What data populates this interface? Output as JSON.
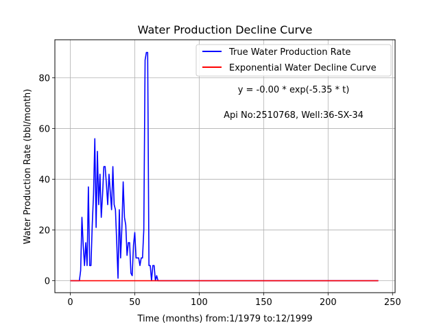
{
  "chart_data": {
    "type": "line",
    "title": "Water Production Decline Curve",
    "xlabel": "Time (months) from:1/1979 to:12/1999",
    "ylabel": "Water Production Rate (bbl/month)",
    "xlim": [
      -12,
      252
    ],
    "ylim": [
      -4.7,
      95
    ],
    "xticks": [
      0,
      50,
      100,
      150,
      200,
      250
    ],
    "yticks": [
      0,
      20,
      40,
      60,
      80
    ],
    "grid": true,
    "legend_position": "top-right",
    "annotations": [
      "y = -0.00 * exp(-5.35 * t)",
      "Api No:2510768, Well:36-SX-34"
    ],
    "series": [
      {
        "name": "True Water Production Rate",
        "color": "#0000ff",
        "x": [
          0,
          1,
          2,
          3,
          4,
          5,
          6,
          7,
          8,
          9,
          10,
          11,
          12,
          13,
          14,
          15,
          16,
          17,
          18,
          19,
          20,
          21,
          22,
          23,
          24,
          25,
          26,
          27,
          28,
          29,
          30,
          31,
          32,
          33,
          34,
          35,
          36,
          37,
          38,
          39,
          40,
          41,
          42,
          43,
          44,
          45,
          46,
          47,
          48,
          49,
          50,
          51,
          52,
          53,
          54,
          55,
          56,
          57,
          58,
          59,
          60,
          61,
          62,
          63,
          64,
          65,
          66,
          67,
          68,
          69,
          70,
          239
        ],
        "values": [
          0,
          0,
          0,
          0,
          0,
          0,
          0,
          0,
          4,
          25,
          14,
          6,
          15,
          6,
          37,
          6,
          6,
          22,
          34,
          56,
          21,
          51,
          30,
          42,
          25,
          34,
          45,
          45,
          38,
          30,
          42,
          35,
          28,
          45,
          30,
          28,
          15,
          1,
          28,
          9,
          21,
          39,
          25,
          22,
          10,
          15,
          15,
          3,
          2,
          14,
          19,
          9,
          9,
          9,
          6,
          9,
          9,
          20,
          87,
          90,
          90,
          6,
          6,
          0,
          6,
          6,
          0,
          2,
          0,
          0,
          0,
          0
        ]
      },
      {
        "name": "Exponential Water Decline Curve",
        "color": "#ff0000",
        "x": [
          0,
          239
        ],
        "values": [
          0,
          0
        ]
      }
    ]
  }
}
